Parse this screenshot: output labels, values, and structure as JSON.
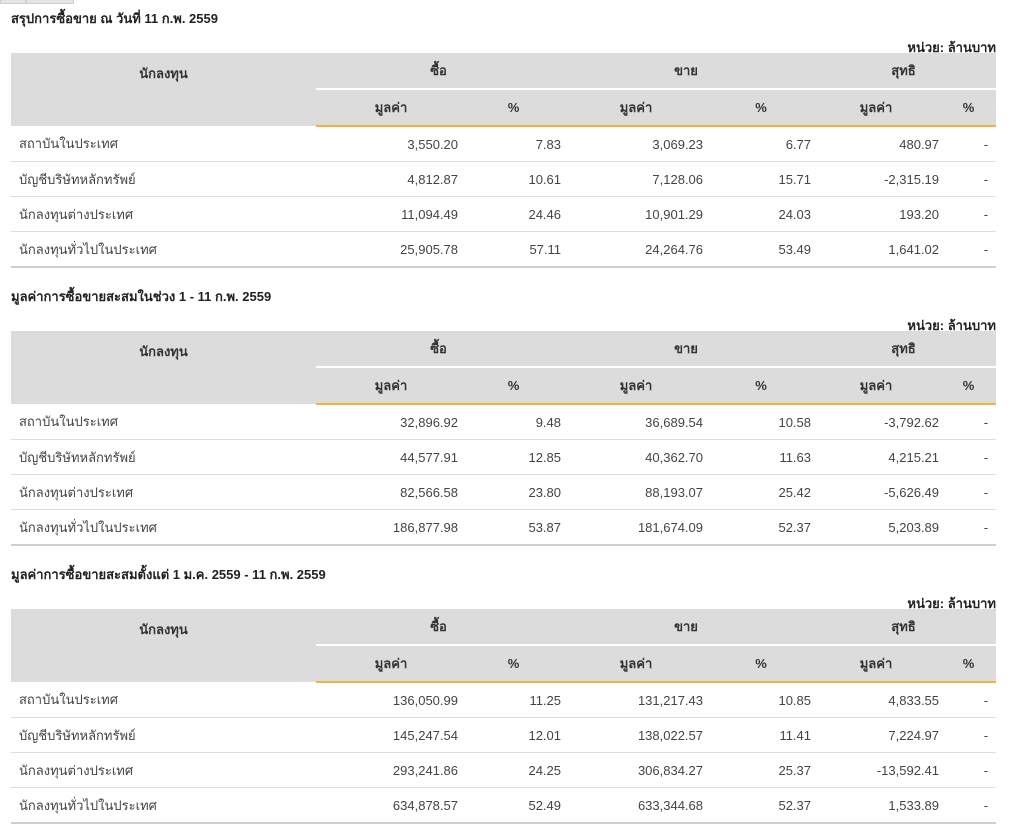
{
  "colors": {
    "positive": "#3a9a3a",
    "negative": "#e02a2a",
    "header_bg": "#dcdcdc",
    "accent": "#f0b43c"
  },
  "sections": [
    {
      "title": "สรุปการซื้อขาย ณ วันที่ 11 ก.พ. 2559",
      "unit": "หน่วย: ล้านบาท",
      "headers": {
        "investor": "นักลงทุน",
        "buy": "ซื้อ",
        "sell": "ขาย",
        "net": "สุทธิ",
        "value": "มูลค่า",
        "percent": "%"
      },
      "rows": [
        {
          "name": "สถาบันในประเทศ",
          "buy_value": "3,550.20",
          "buy_pct": "7.83",
          "sell_value": "3,069.23",
          "sell_pct": "6.77",
          "net_value": "480.97",
          "net_sign": "positive",
          "net_pct": "-"
        },
        {
          "name": "บัญชีบริษัทหลักทรัพย์",
          "buy_value": "4,812.87",
          "buy_pct": "10.61",
          "sell_value": "7,128.06",
          "sell_pct": "15.71",
          "net_value": "-2,315.19",
          "net_sign": "negative",
          "net_pct": "-"
        },
        {
          "name": "นักลงทุนต่างประเทศ",
          "buy_value": "11,094.49",
          "buy_pct": "24.46",
          "sell_value": "10,901.29",
          "sell_pct": "24.03",
          "net_value": "193.20",
          "net_sign": "positive",
          "net_pct": "-"
        },
        {
          "name": "นักลงทุนทั่วไปในประเทศ",
          "buy_value": "25,905.78",
          "buy_pct": "57.11",
          "sell_value": "24,264.76",
          "sell_pct": "53.49",
          "net_value": "1,641.02",
          "net_sign": "positive",
          "net_pct": "-"
        }
      ]
    },
    {
      "title": "มูลค่าการซื้อขายสะสมในช่วง 1 - 11 ก.พ. 2559",
      "unit": "หน่วย: ล้านบาท",
      "headers": {
        "investor": "นักลงทุน",
        "buy": "ซื้อ",
        "sell": "ขาย",
        "net": "สุทธิ",
        "value": "มูลค่า",
        "percent": "%"
      },
      "rows": [
        {
          "name": "สถาบันในประเทศ",
          "buy_value": "32,896.92",
          "buy_pct": "9.48",
          "sell_value": "36,689.54",
          "sell_pct": "10.58",
          "net_value": "-3,792.62",
          "net_sign": "negative",
          "net_pct": "-"
        },
        {
          "name": "บัญชีบริษัทหลักทรัพย์",
          "buy_value": "44,577.91",
          "buy_pct": "12.85",
          "sell_value": "40,362.70",
          "sell_pct": "11.63",
          "net_value": "4,215.21",
          "net_sign": "positive",
          "net_pct": "-"
        },
        {
          "name": "นักลงทุนต่างประเทศ",
          "buy_value": "82,566.58",
          "buy_pct": "23.80",
          "sell_value": "88,193.07",
          "sell_pct": "25.42",
          "net_value": "-5,626.49",
          "net_sign": "negative",
          "net_pct": "-"
        },
        {
          "name": "นักลงทุนทั่วไปในประเทศ",
          "buy_value": "186,877.98",
          "buy_pct": "53.87",
          "sell_value": "181,674.09",
          "sell_pct": "52.37",
          "net_value": "5,203.89",
          "net_sign": "positive",
          "net_pct": "-"
        }
      ]
    },
    {
      "title": "มูลค่าการซื้อขายสะสมตั้งแต่ 1 ม.ค. 2559 - 11 ก.พ. 2559",
      "unit": "หน่วย: ล้านบาท",
      "headers": {
        "investor": "นักลงทุน",
        "buy": "ซื้อ",
        "sell": "ขาย",
        "net": "สุทธิ",
        "value": "มูลค่า",
        "percent": "%"
      },
      "rows": [
        {
          "name": "สถาบันในประเทศ",
          "buy_value": "136,050.99",
          "buy_pct": "11.25",
          "sell_value": "131,217.43",
          "sell_pct": "10.85",
          "net_value": "4,833.55",
          "net_sign": "positive",
          "net_pct": "-"
        },
        {
          "name": "บัญชีบริษัทหลักทรัพย์",
          "buy_value": "145,247.54",
          "buy_pct": "12.01",
          "sell_value": "138,022.57",
          "sell_pct": "11.41",
          "net_value": "7,224.97",
          "net_sign": "positive",
          "net_pct": "-"
        },
        {
          "name": "นักลงทุนต่างประเทศ",
          "buy_value": "293,241.86",
          "buy_pct": "24.25",
          "sell_value": "306,834.27",
          "sell_pct": "25.37",
          "net_value": "-13,592.41",
          "net_sign": "negative",
          "net_pct": "-"
        },
        {
          "name": "นักลงทุนทั่วไปในประเทศ",
          "buy_value": "634,878.57",
          "buy_pct": "52.49",
          "sell_value": "633,344.68",
          "sell_pct": "52.37",
          "net_value": "1,533.89",
          "net_sign": "positive",
          "net_pct": "-"
        }
      ]
    }
  ]
}
